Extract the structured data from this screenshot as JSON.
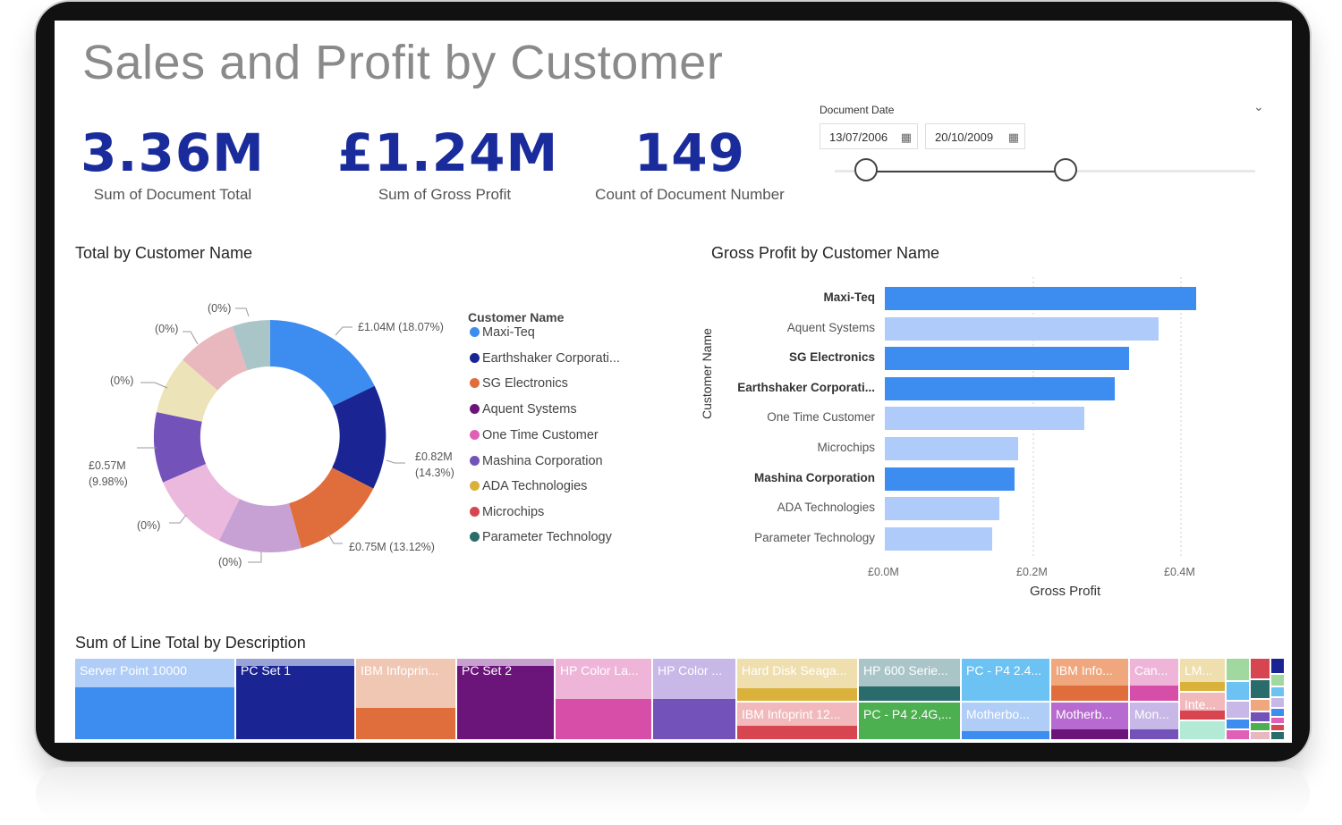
{
  "dashboard": {
    "title": "Sales and Profit by Customer"
  },
  "kpis": [
    {
      "value": "3.36M",
      "label": "Sum of Document Total"
    },
    {
      "value": "£1.24M",
      "label": "Sum of Gross Profit"
    },
    {
      "value": "149",
      "label": "Count of Document Number"
    }
  ],
  "slicer": {
    "title": "Document Date",
    "start": "13/07/2006",
    "end": "20/10/2009"
  },
  "donut": {
    "title": "Total by Customer Name",
    "legend_title": "Customer Name",
    "legend": [
      {
        "name": "Maxi-Teq",
        "color": "#3d8cf0"
      },
      {
        "name": "Earthshaker Corporati...",
        "color": "#1a2593"
      },
      {
        "name": "SG Electronics",
        "color": "#e06e3c"
      },
      {
        "name": "Aquent Systems",
        "color": "#6b157a"
      },
      {
        "name": "One Time Customer",
        "color": "#e060b8"
      },
      {
        "name": "Mashina Corporation",
        "color": "#7353ba"
      },
      {
        "name": "ADA Technologies",
        "color": "#d9b13b"
      },
      {
        "name": "Microchips",
        "color": "#d64550"
      },
      {
        "name": "Parameter Technology",
        "color": "#2a6b6b"
      }
    ],
    "labels": [
      "£1.04M (18.07%)",
      "£0.82M",
      "(14.3%)",
      "£0.75M (13.12%)",
      "(0%)",
      "(0%)",
      "£0.57M",
      "(9.98%)",
      "(0%)",
      "(0%)",
      "(0%)"
    ]
  },
  "chart_data": {
    "type": "bar",
    "title": "Gross Profit by Customer Name",
    "xlabel": "Gross Profit",
    "ylabel": "Customer Name",
    "categories": [
      "Maxi-Teq",
      "Aquent Systems",
      "SG Electronics",
      "Earthshaker Corporati...",
      "One Time Customer",
      "Microchips",
      "Mashina Corporation",
      "ADA Technologies",
      "Parameter Technology"
    ],
    "values": [
      0.42,
      0.37,
      0.33,
      0.31,
      0.27,
      0.18,
      0.175,
      0.155,
      0.145
    ],
    "highlighted": [
      true,
      false,
      true,
      true,
      false,
      false,
      true,
      false,
      false
    ],
    "xlim": [
      0,
      0.45
    ],
    "xticks": [
      "£0.0M",
      "£0.2M",
      "£0.4M"
    ],
    "colors": {
      "highlight": "#3d8cf0",
      "base": "#aecbfa"
    }
  },
  "treemap": {
    "title": "Sum of Line Total by Description",
    "cells": [
      "Server Point 10000",
      "PC Set 1",
      "IBM Infoprin...",
      "PC Set 2",
      "HP Color La...",
      "HP Color ...",
      "Hard Disk Seaga...",
      "IBM Infoprint 12...",
      "HP 600 Serie...",
      "PC - P4 2.4G,...",
      "PC - P4 2.4...",
      "Motherbo...",
      "IBM Info...",
      "Motherb...",
      "Can...",
      "Mon...",
      "LM...",
      "Inte..."
    ]
  }
}
